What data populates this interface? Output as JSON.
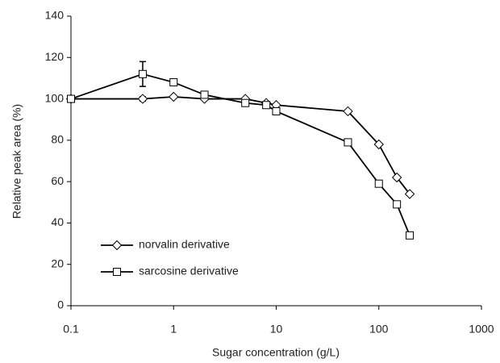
{
  "chart_data": {
    "type": "line",
    "x_label": "Sugar concentration (g/L)",
    "y_label": "Relative peak area (%)",
    "x": [
      0.1,
      0.5,
      1,
      2,
      5,
      8,
      10,
      50,
      100,
      150,
      200
    ],
    "series": [
      {
        "name": "norvalin derivative",
        "color": "#000000",
        "marker": "diamond",
        "values": [
          100,
          100,
          101,
          100,
          100,
          98,
          97,
          94,
          78,
          62,
          54
        ],
        "errors": [
          null,
          1,
          null,
          null,
          null,
          null,
          null,
          null,
          null,
          null,
          null
        ]
      },
      {
        "name": "sarcosine derivative",
        "color": "#000000",
        "marker": "square",
        "values": [
          100,
          112,
          108,
          102,
          98,
          97,
          94,
          79,
          59,
          49,
          34
        ],
        "errors": [
          null,
          6,
          null,
          null,
          null,
          null,
          null,
          null,
          null,
          null,
          null
        ]
      }
    ],
    "x_scale": "log",
    "xlim": [
      0.1,
      1000
    ],
    "xticks": [
      0.1,
      1,
      10,
      100,
      1000
    ],
    "ylim": [
      0,
      140
    ],
    "yticks": [
      0,
      20,
      40,
      60,
      80,
      100,
      120,
      140
    ],
    "grid": false,
    "legend": "lower left"
  }
}
